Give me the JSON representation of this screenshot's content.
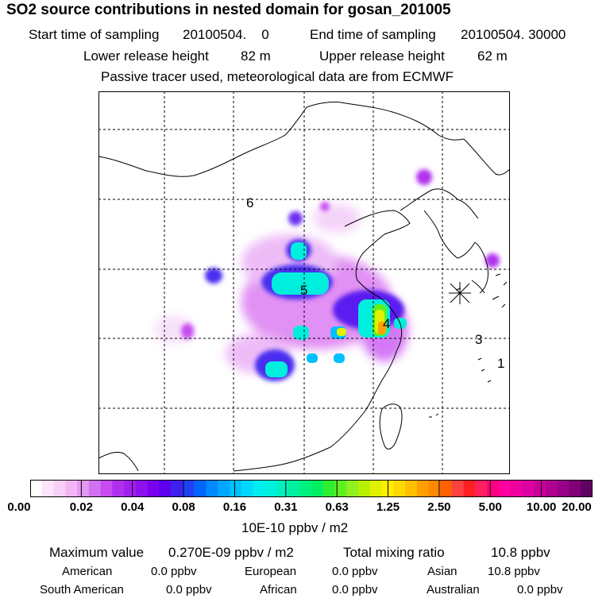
{
  "title": "SO2 source contributions in nested domain for gosan_201005",
  "sampling": {
    "start_label": "Start time of sampling",
    "start_value": "20100504.    0",
    "end_label": "End time of sampling",
    "end_value": "20100504. 30000"
  },
  "release": {
    "lower_label": "Lower release height",
    "lower_value": "82 m",
    "upper_label": "Upper release height",
    "upper_value": "62 m"
  },
  "note": "Passive tracer used, meteorological data are from ECMWF",
  "map": {
    "site_labels": [
      "1",
      "3",
      "4",
      "5",
      "6"
    ],
    "receptor_marker": "star-icon",
    "colors": {
      "white": "#ffffff",
      "line": "#000000",
      "grid": "#000000"
    }
  },
  "colorbar": {
    "tick_labels": [
      "0.00",
      "0.02",
      "0.04",
      "0.08",
      "0.16",
      "0.31",
      "0.63",
      "1.25",
      "2.50",
      "5.00",
      "10.00",
      "20.00"
    ],
    "colors": [
      "#ffffff",
      "#fde4fd",
      "#f8cff8",
      "#f3b6f5",
      "#e399f2",
      "#d272f0",
      "#c64cf0",
      "#b030ee",
      "#a020ee",
      "#8e10ee",
      "#7a00ee",
      "#5c00ee",
      "#4020f0",
      "#2040f5",
      "#0066ff",
      "#0088ff",
      "#00a6ff",
      "#00c0ff",
      "#00d8ff",
      "#00eeee",
      "#00f0e0",
      "#00f0c0",
      "#00f0a0",
      "#00f080",
      "#00f060",
      "#30ee30",
      "#60f020",
      "#90f020",
      "#b8f000",
      "#e0f000",
      "#ffee00",
      "#ffd800",
      "#ffc000",
      "#ffa000",
      "#ff8800",
      "#ff6000",
      "#ff4040",
      "#ff2020",
      "#ff2060",
      "#ff0080",
      "#ff00a0",
      "#ee00a0",
      "#dd00a0",
      "#c8009a",
      "#b00090",
      "#980088",
      "#800078",
      "#600060"
    ],
    "unit_label": "10E-10 ppbv / m2"
  },
  "summary": {
    "max_label": "Maximum value",
    "max_value": "0.270E-09 ppbv / m2",
    "total_label": "Total mixing ratio",
    "total_value": "10.8 ppbv",
    "regions": [
      {
        "name": "American",
        "value": "0.0 ppbv"
      },
      {
        "name": "European",
        "value": "0.0 ppbv"
      },
      {
        "name": "Asian",
        "value": "10.8 ppbv"
      },
      {
        "name": "South American",
        "value": "0.0 ppbv"
      },
      {
        "name": "African",
        "value": "0.0 ppbv"
      },
      {
        "name": "Australian",
        "value": "0.0 ppbv"
      }
    ]
  }
}
